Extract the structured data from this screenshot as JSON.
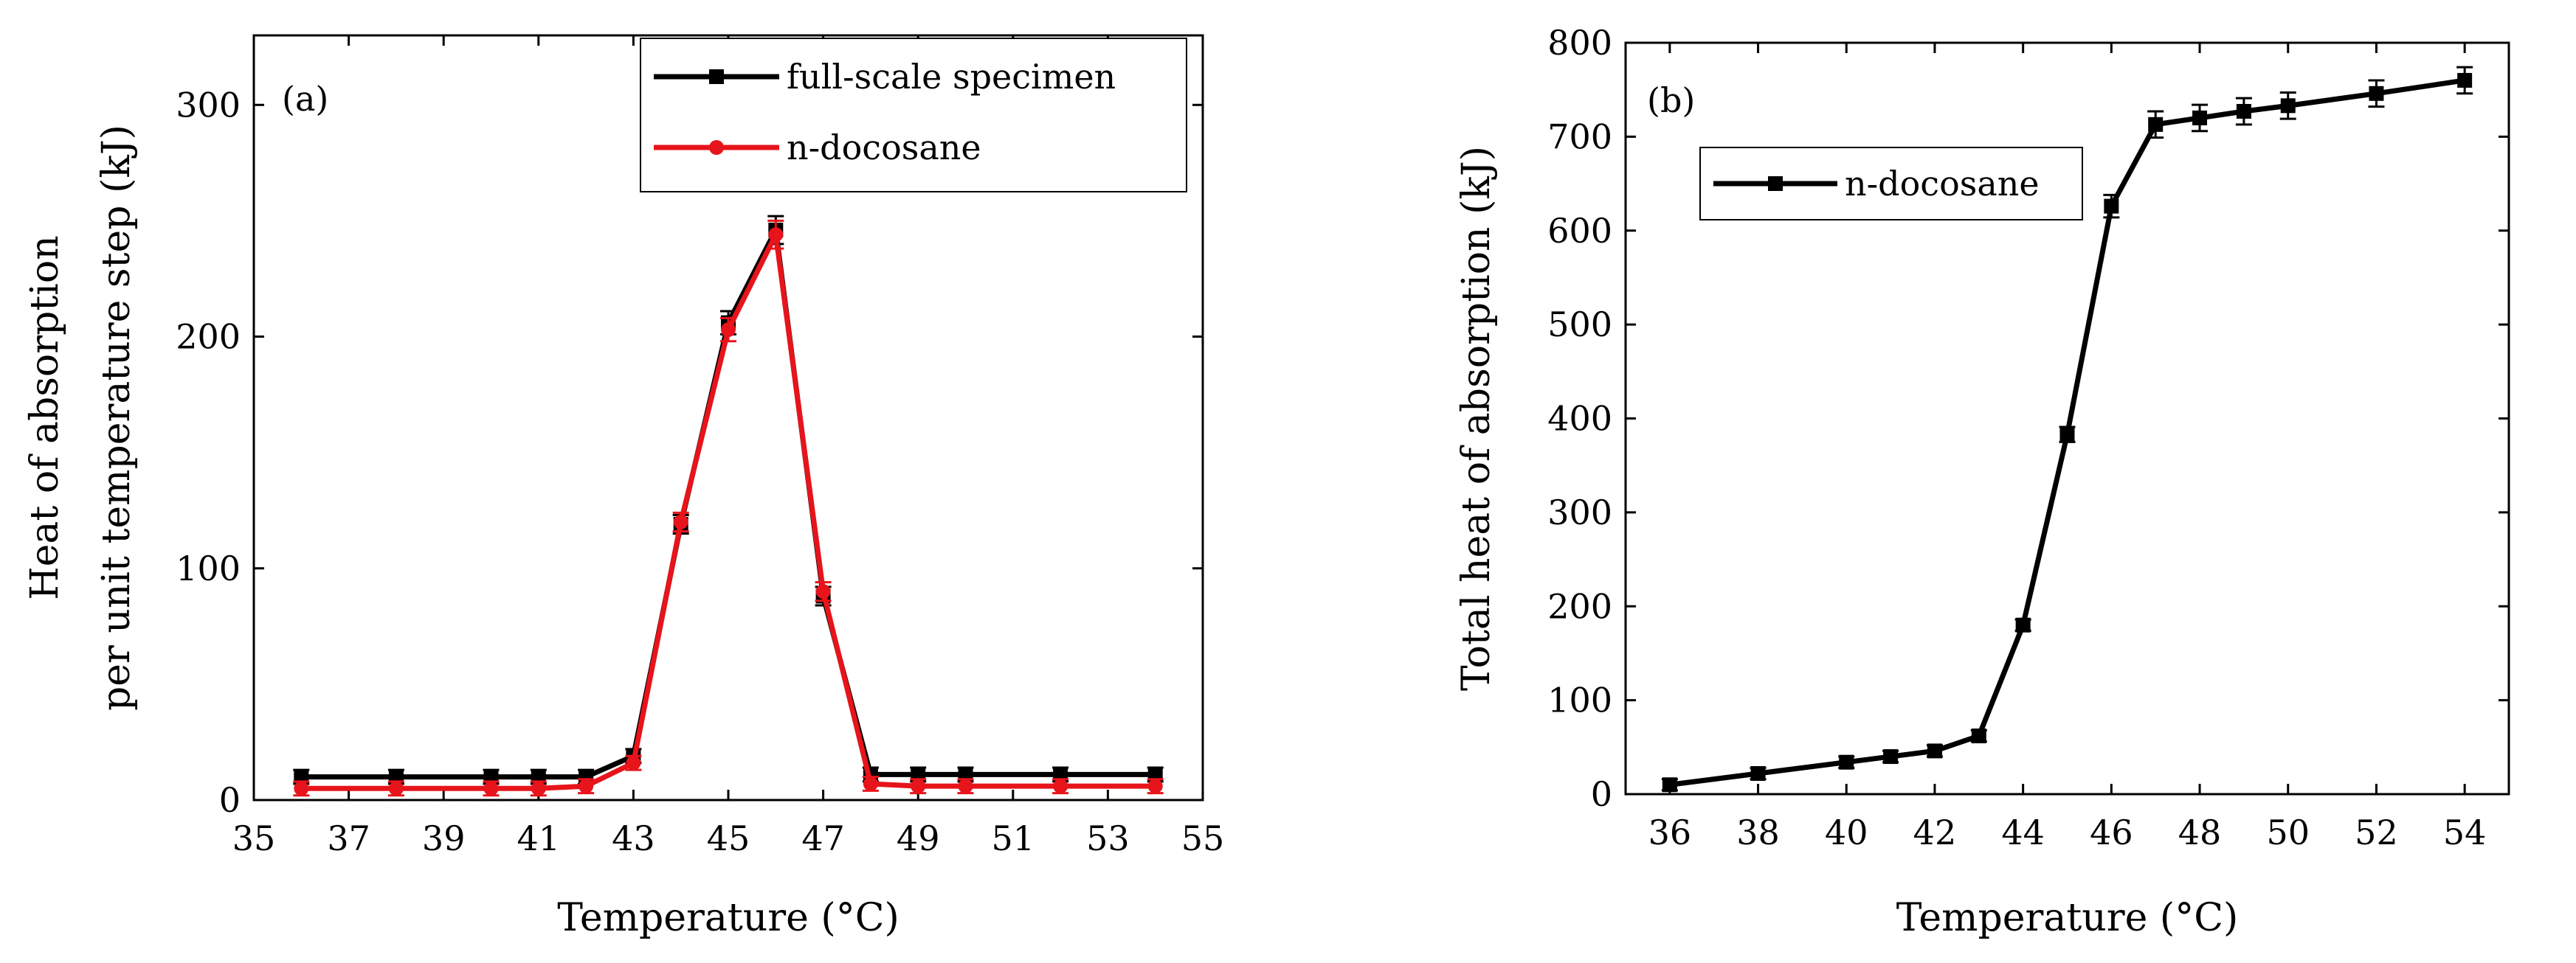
{
  "chart_data": [
    {
      "panel": "(a)",
      "type": "line",
      "xlabel": "Temperature (°C)",
      "ylabel_lines": [
        "Heat of absorption",
        "per unit temperature step (kJ)"
      ],
      "xlim": [
        35,
        55
      ],
      "ylim": [
        0,
        330
      ],
      "xticks": [
        35,
        37,
        39,
        41,
        43,
        45,
        47,
        49,
        51,
        53,
        55
      ],
      "yticks": [
        0,
        100,
        200,
        300
      ],
      "legend_position": "top-right",
      "series": [
        {
          "name": "full-scale specimen",
          "color": "#000000",
          "marker": "square",
          "x": [
            36,
            38,
            40,
            41,
            42,
            43,
            44,
            45,
            46,
            47,
            48,
            49,
            50,
            52,
            54
          ],
          "y": [
            10,
            10,
            10,
            10,
            10,
            19,
            119,
            206,
            246,
            88,
            11,
            11,
            11,
            11,
            11
          ],
          "err": [
            3,
            3,
            3,
            3,
            3,
            3,
            4,
            5,
            6,
            4,
            3,
            3,
            3,
            3,
            3
          ]
        },
        {
          "name": "n-docosane",
          "color": "#e8141c",
          "marker": "circle",
          "x": [
            36,
            38,
            40,
            41,
            42,
            43,
            44,
            45,
            46,
            47,
            48,
            49,
            50,
            52,
            54
          ],
          "y": [
            5,
            5,
            5,
            5,
            6,
            16,
            120,
            203,
            244,
            90,
            7,
            6,
            6,
            6,
            6
          ],
          "err": [
            3,
            3,
            3,
            3,
            3,
            3,
            4,
            5,
            6,
            4,
            3,
            3,
            3,
            3,
            3
          ]
        }
      ]
    },
    {
      "panel": "(b)",
      "type": "line",
      "xlabel": "Temperature (°C)",
      "ylabel_lines": [
        "Total heat of absorption (kJ)"
      ],
      "xlim": [
        35,
        55
      ],
      "ylim": [
        0,
        800
      ],
      "xticks": [
        36,
        38,
        40,
        42,
        44,
        46,
        48,
        50,
        52,
        54
      ],
      "yticks": [
        0,
        100,
        200,
        300,
        400,
        500,
        600,
        700,
        800
      ],
      "legend_position": "top-left",
      "series": [
        {
          "name": "n-docosane",
          "color": "#000000",
          "marker": "square",
          "x": [
            36,
            38,
            40,
            41,
            42,
            43,
            44,
            45,
            46,
            47,
            48,
            49,
            50,
            52,
            54
          ],
          "y": [
            10,
            22,
            34,
            40,
            46,
            62,
            180,
            383,
            626,
            713,
            720,
            727,
            733,
            746,
            760
          ],
          "err": [
            6,
            6,
            6,
            6,
            6,
            6,
            6,
            8,
            12,
            14,
            14,
            14,
            14,
            14,
            14
          ]
        }
      ]
    }
  ]
}
